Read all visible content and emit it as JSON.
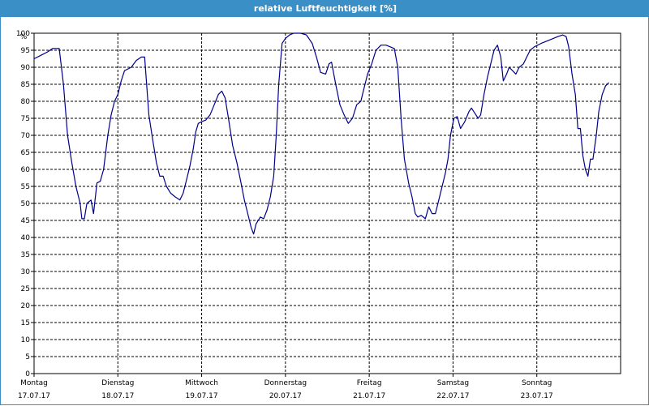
{
  "window": {
    "title": "relative Luftfeuchtigkeit [%]"
  },
  "colors": {
    "title_bar": "#3a8fc7",
    "line": "#00008b",
    "grid": "#000000"
  },
  "chart_data": {
    "type": "line",
    "title": "relative Luftfeuchtigkeit [%]",
    "ylabel": "%",
    "xlabel": "",
    "ylim": [
      0,
      100
    ],
    "y_ticks": [
      0,
      5,
      10,
      15,
      20,
      25,
      30,
      35,
      40,
      45,
      50,
      55,
      60,
      65,
      70,
      75,
      80,
      85,
      90,
      95,
      100
    ],
    "xlim": [
      0,
      7
    ],
    "grid": true,
    "x_ticks": [
      {
        "day": "Montag",
        "date": "17.07.17"
      },
      {
        "day": "Dienstag",
        "date": "18.07.17"
      },
      {
        "day": "Mittwoch",
        "date": "19.07.17"
      },
      {
        "day": "Donnerstag",
        "date": "20.07.17"
      },
      {
        "day": "Freitag",
        "date": "21.07.17"
      },
      {
        "day": "Samstag",
        "date": "22.07.17"
      },
      {
        "day": "Sonntag",
        "date": "23.07.17"
      }
    ],
    "series": [
      {
        "values": [
          [
            0.0,
            92.5
          ],
          [
            0.08,
            93.5
          ],
          [
            0.16,
            94.5
          ],
          [
            0.22,
            95.5
          ],
          [
            0.3,
            95.5
          ],
          [
            0.35,
            85
          ],
          [
            0.4,
            70
          ],
          [
            0.45,
            62
          ],
          [
            0.5,
            55
          ],
          [
            0.55,
            50
          ],
          [
            0.57,
            45.5
          ],
          [
            0.6,
            45.5
          ],
          [
            0.63,
            50
          ],
          [
            0.68,
            51
          ],
          [
            0.71,
            47
          ],
          [
            0.75,
            56
          ],
          [
            0.79,
            56.5
          ],
          [
            0.83,
            60
          ],
          [
            0.88,
            70
          ],
          [
            0.92,
            76
          ],
          [
            0.96,
            80
          ],
          [
            1.0,
            82
          ],
          [
            1.04,
            86
          ],
          [
            1.08,
            89
          ],
          [
            1.12,
            89.5
          ],
          [
            1.16,
            90
          ],
          [
            1.22,
            92
          ],
          [
            1.28,
            93
          ],
          [
            1.32,
            93
          ],
          [
            1.37,
            76
          ],
          [
            1.42,
            68
          ],
          [
            1.46,
            62
          ],
          [
            1.5,
            58
          ],
          [
            1.54,
            58
          ],
          [
            1.58,
            55
          ],
          [
            1.63,
            53
          ],
          [
            1.68,
            52
          ],
          [
            1.74,
            51
          ],
          [
            1.78,
            53
          ],
          [
            1.82,
            57
          ],
          [
            1.86,
            61
          ],
          [
            1.9,
            66
          ],
          [
            1.93,
            71
          ],
          [
            1.96,
            73.5
          ],
          [
            2.0,
            74
          ],
          [
            2.05,
            74.5
          ],
          [
            2.1,
            76
          ],
          [
            2.15,
            79
          ],
          [
            2.2,
            82
          ],
          [
            2.24,
            83
          ],
          [
            2.28,
            81
          ],
          [
            2.32,
            75
          ],
          [
            2.37,
            67
          ],
          [
            2.42,
            62
          ],
          [
            2.47,
            56
          ],
          [
            2.51,
            51
          ],
          [
            2.55,
            47
          ],
          [
            2.59,
            43
          ],
          [
            2.62,
            41
          ],
          [
            2.65,
            44
          ],
          [
            2.7,
            46
          ],
          [
            2.74,
            45.5
          ],
          [
            2.78,
            48
          ],
          [
            2.82,
            52
          ],
          [
            2.86,
            58
          ],
          [
            2.89,
            70
          ],
          [
            2.92,
            85
          ],
          [
            2.96,
            97
          ],
          [
            3.0,
            98.5
          ],
          [
            3.05,
            99.5
          ],
          [
            3.1,
            100
          ],
          [
            3.18,
            100
          ],
          [
            3.25,
            99.5
          ],
          [
            3.32,
            97
          ],
          [
            3.37,
            93
          ],
          [
            3.42,
            88.5
          ],
          [
            3.48,
            88
          ],
          [
            3.52,
            91
          ],
          [
            3.55,
            91.5
          ],
          [
            3.6,
            85
          ],
          [
            3.65,
            79
          ],
          [
            3.7,
            76
          ],
          [
            3.75,
            73.5
          ],
          [
            3.8,
            75
          ],
          [
            3.85,
            79
          ],
          [
            3.9,
            80
          ],
          [
            3.94,
            84
          ],
          [
            3.98,
            88
          ],
          [
            4.03,
            91
          ],
          [
            4.08,
            95
          ],
          [
            4.14,
            96.5
          ],
          [
            4.2,
            96.5
          ],
          [
            4.25,
            96
          ],
          [
            4.3,
            95.5
          ],
          [
            4.34,
            90
          ],
          [
            4.38,
            75
          ],
          [
            4.42,
            63
          ],
          [
            4.47,
            56
          ],
          [
            4.51,
            52
          ],
          [
            4.55,
            47
          ],
          [
            4.58,
            46
          ],
          [
            4.62,
            46.5
          ],
          [
            4.67,
            45.5
          ],
          [
            4.71,
            49
          ],
          [
            4.75,
            47
          ],
          [
            4.79,
            47
          ],
          [
            4.83,
            51
          ],
          [
            4.87,
            55
          ],
          [
            4.91,
            59
          ],
          [
            4.94,
            63
          ],
          [
            4.97,
            70
          ],
          [
            5.01,
            75
          ],
          [
            5.05,
            75.5
          ],
          [
            5.09,
            72
          ],
          [
            5.14,
            74
          ],
          [
            5.19,
            77
          ],
          [
            5.22,
            78
          ],
          [
            5.26,
            76.5
          ],
          [
            5.3,
            75
          ],
          [
            5.33,
            76
          ],
          [
            5.37,
            82
          ],
          [
            5.41,
            87
          ],
          [
            5.45,
            91
          ],
          [
            5.49,
            95
          ],
          [
            5.53,
            96.5
          ],
          [
            5.57,
            93
          ],
          [
            5.6,
            86
          ],
          [
            5.64,
            88
          ],
          [
            5.67,
            90
          ],
          [
            5.71,
            89
          ],
          [
            5.75,
            88
          ],
          [
            5.79,
            90
          ],
          [
            5.84,
            91
          ],
          [
            5.88,
            93
          ],
          [
            5.92,
            95
          ],
          [
            5.97,
            96
          ],
          [
            6.05,
            97
          ],
          [
            6.15,
            98
          ],
          [
            6.25,
            99
          ],
          [
            6.31,
            99.5
          ],
          [
            6.35,
            99
          ],
          [
            6.38,
            96
          ],
          [
            6.42,
            88
          ],
          [
            6.46,
            82
          ],
          [
            6.49,
            72
          ],
          [
            6.52,
            72
          ],
          [
            6.55,
            64
          ],
          [
            6.58,
            60
          ],
          [
            6.61,
            58
          ],
          [
            6.64,
            63
          ],
          [
            6.67,
            63
          ],
          [
            6.71,
            70
          ],
          [
            6.74,
            77
          ],
          [
            6.78,
            82
          ],
          [
            6.82,
            84.5
          ],
          [
            6.86,
            85.5
          ]
        ]
      }
    ]
  }
}
